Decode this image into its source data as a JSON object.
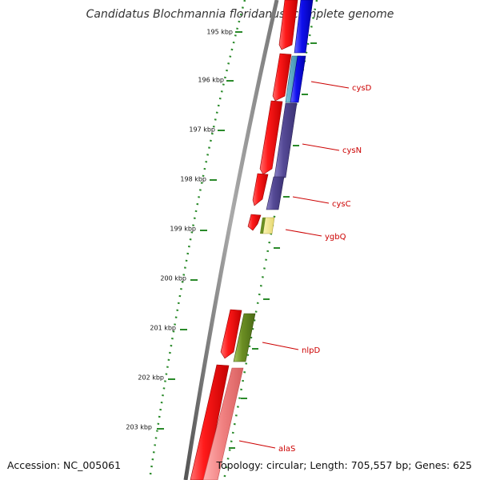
{
  "title": "Candidatus Blochmannia floridanus, complete genome",
  "footer": {
    "accession": "Accession: NC_005061",
    "topology": "Topology: circular; Length: 705,557 bp; Genes: 625"
  },
  "colors": {
    "tick": "#2a8a2a",
    "backbone": "#888888",
    "label": "#cc0000",
    "forward_cds": "#ee1111",
    "reverse_blue": "#1111ee",
    "reverse_teal": "#3399bb",
    "reverse_purple": "#5a4f9a",
    "reverse_yellow": "#f0e68c",
    "reverse_olive": "#6b8e23",
    "reverse_pink": "#f08080"
  },
  "axis": {
    "unit": "kbp",
    "ticks": [
      195,
      196,
      197,
      198,
      199,
      200,
      201,
      202,
      203
    ],
    "tick_labels": [
      "195 kbp",
      "196 kbp",
      "197 kbp",
      "198 kbp",
      "199 kbp",
      "200 kbp",
      "201 kbp",
      "202 kbp",
      "203 kbp"
    ]
  },
  "genes": [
    {
      "name": "cysD",
      "strand": "reverse",
      "color_key": "reverse_teal"
    },
    {
      "name": "cysN",
      "strand": "reverse",
      "color_key": "reverse_purple"
    },
    {
      "name": "cysC",
      "strand": "reverse",
      "color_key": "reverse_purple"
    },
    {
      "name": "ygbQ",
      "strand": "reverse",
      "color_key": "reverse_yellow"
    },
    {
      "name": "nlpD",
      "strand": "reverse",
      "color_key": "reverse_olive"
    },
    {
      "name": "alaS",
      "strand": "reverse",
      "color_key": "reverse_pink"
    }
  ]
}
